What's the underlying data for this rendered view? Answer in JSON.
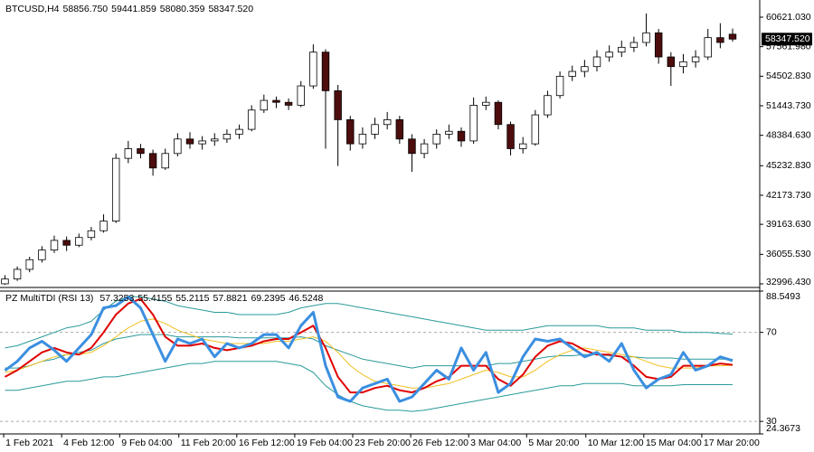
{
  "chart_data": [
    {
      "type": "candlestick",
      "title": "BTCUSD,H4",
      "quote": [
        {
          "value": 58856.75,
          "label": "58856.750"
        },
        {
          "value": 59441.859,
          "label": "59441.859"
        },
        {
          "value": 58080.359,
          "label": "58080.359"
        },
        {
          "value": 58347.52,
          "label": "58347.520"
        }
      ],
      "last_price": {
        "value": 58347.52,
        "label": "58347.520"
      },
      "up_color": "#ffffff",
      "down_color": "#4d0d0d",
      "wick_color": "#000000",
      "ylim": [
        32622,
        62400
      ],
      "yticks": [
        {
          "value": 60621.03,
          "label": "60621.030"
        },
        {
          "value": 57561.98,
          "label": "57561.980"
        },
        {
          "value": 54502.83,
          "label": "54502.830"
        },
        {
          "value": 51443.73,
          "label": "51443.730"
        },
        {
          "value": 48384.63,
          "label": "48384.630"
        },
        {
          "value": 45232.83,
          "label": "45232.830"
        },
        {
          "value": 42173.73,
          "label": "42173.730"
        },
        {
          "value": 39163.63,
          "label": "39163.630"
        },
        {
          "value": 36055.53,
          "label": "36055.530"
        },
        {
          "value": 32996.43,
          "label": "32996.430"
        }
      ],
      "ohlc": [
        [
          33000,
          33900,
          32900,
          33500
        ],
        [
          33500,
          34800,
          33300,
          34500
        ],
        [
          34500,
          35800,
          34200,
          35500
        ],
        [
          35500,
          36900,
          35200,
          36500
        ],
        [
          36500,
          38000,
          36200,
          37500
        ],
        [
          37500,
          37900,
          36400,
          37000
        ],
        [
          37000,
          38200,
          36800,
          37800
        ],
        [
          37800,
          38900,
          37500,
          38500
        ],
        [
          38500,
          40200,
          38300,
          39500
        ],
        [
          39500,
          46500,
          39300,
          46000
        ],
        [
          46000,
          47800,
          45500,
          47000
        ],
        [
          47000,
          47500,
          46000,
          46500
        ],
        [
          46500,
          46900,
          44200,
          45000
        ],
        [
          45000,
          47000,
          44800,
          46500
        ],
        [
          46500,
          48600,
          46200,
          48000
        ],
        [
          48000,
          48700,
          47000,
          47500
        ],
        [
          47500,
          48300,
          46900,
          47800
        ],
        [
          47800,
          48600,
          47300,
          48000
        ],
        [
          48000,
          49000,
          47600,
          48500
        ],
        [
          48500,
          49500,
          48000,
          49000
        ],
        [
          49000,
          51500,
          48800,
          51000
        ],
        [
          51000,
          52600,
          50700,
          52000
        ],
        [
          52000,
          52400,
          51200,
          51800
        ],
        [
          51800,
          52200,
          51000,
          51500
        ],
        [
          51500,
          54000,
          51300,
          53500
        ],
        [
          53500,
          57800,
          53200,
          57000
        ],
        [
          57000,
          57300,
          47000,
          53000
        ],
        [
          53000,
          53600,
          45200,
          50000
        ],
        [
          50000,
          50400,
          46800,
          47500
        ],
        [
          47500,
          49200,
          47000,
          48500
        ],
        [
          48500,
          50200,
          48000,
          49500
        ],
        [
          49500,
          50800,
          49000,
          50000
        ],
        [
          50000,
          50400,
          47500,
          48000
        ],
        [
          48000,
          48500,
          44600,
          46500
        ],
        [
          46500,
          48000,
          46000,
          47500
        ],
        [
          47500,
          49000,
          47000,
          48500
        ],
        [
          48500,
          49500,
          48000,
          48800
        ],
        [
          48800,
          49200,
          47200,
          47800
        ],
        [
          47800,
          52300,
          47500,
          51500
        ],
        [
          51500,
          52400,
          51000,
          51800
        ],
        [
          51800,
          52000,
          49000,
          49500
        ],
        [
          49500,
          49800,
          46300,
          47000
        ],
        [
          47000,
          48200,
          46500,
          47500
        ],
        [
          47500,
          51000,
          47300,
          50500
        ],
        [
          50500,
          53000,
          50200,
          52500
        ],
        [
          52500,
          55000,
          52200,
          54500
        ],
        [
          54500,
          55600,
          54000,
          55000
        ],
        [
          55000,
          56200,
          54400,
          55500
        ],
        [
          55500,
          57200,
          55000,
          56500
        ],
        [
          56500,
          57700,
          56000,
          57000
        ],
        [
          57000,
          58200,
          56500,
          57500
        ],
        [
          57500,
          58600,
          57000,
          58000
        ],
        [
          58000,
          61000,
          57600,
          59000
        ],
        [
          59000,
          59400,
          55800,
          56500
        ],
        [
          56500,
          57000,
          53500,
          55500
        ],
        [
          55500,
          56800,
          54800,
          56000
        ],
        [
          56000,
          57200,
          55400,
          56500
        ],
        [
          56500,
          59400,
          56200,
          58500
        ],
        [
          58500,
          60000,
          57400,
          58000
        ],
        [
          58856.75,
          59441.859,
          58080.359,
          58347.52
        ]
      ]
    },
    {
      "type": "line",
      "title": "PZ MultiTDI (RSI 13)",
      "current_values": [
        57.3253,
        55.4155,
        55.2115,
        57.8821,
        69.2395,
        46.5248
      ],
      "ylim": [
        24.3673,
        88.5493
      ],
      "yticks": [
        88.5493,
        70,
        30,
        24.3673
      ],
      "levels": [
        70,
        30
      ],
      "xlim": [
        -0.4,
        61.2
      ],
      "xticks": [
        {
          "value": -0.1,
          "label": "1 Feb 2021"
        },
        {
          "value": 4.6,
          "label": "4 Feb 12:00"
        },
        {
          "value": 9.3,
          "label": "9 Feb 04:00"
        },
        {
          "value": 14.1,
          "label": "11 Feb 20:00"
        },
        {
          "value": 18.8,
          "label": "16 Feb 12:00"
        },
        {
          "value": 23.5,
          "label": "19 Feb 04:00"
        },
        {
          "value": 28.2,
          "label": "23 Feb 20:00"
        },
        {
          "value": 32.9,
          "label": "26 Feb 12:00"
        },
        {
          "value": 37.6,
          "label": "3 Mar 04:00"
        },
        {
          "value": 42.3,
          "label": "5 Mar 20:00"
        },
        {
          "value": 47.1,
          "label": "10 Mar 12:00"
        },
        {
          "value": 51.8,
          "label": "15 Mar 04:00"
        },
        {
          "value": 56.5,
          "label": "17 Mar 20:00"
        }
      ],
      "series": [
        {
          "color": "#2a9a9a",
          "values": [
            63,
            64,
            66,
            68,
            70,
            72,
            73,
            75,
            80,
            84,
            86,
            86,
            85,
            84,
            82,
            81,
            80,
            79,
            79,
            78,
            78,
            78,
            78,
            79,
            81,
            82,
            83,
            83,
            82,
            81,
            80,
            79,
            78,
            77,
            76,
            75,
            74,
            73,
            72,
            71,
            71,
            71,
            71,
            72,
            73,
            73,
            73,
            73,
            73,
            72,
            72,
            72,
            71,
            71,
            71,
            70,
            70,
            70,
            69.5,
            69.2395
          ]
        },
        {
          "color": "#2a9a9a",
          "values": [
            54,
            54,
            55,
            57,
            58,
            60,
            61,
            62,
            65,
            67,
            68,
            69,
            69,
            69,
            68,
            68,
            68,
            68,
            68,
            67.5,
            67.5,
            67.5,
            67.5,
            67.5,
            68,
            67,
            64,
            62,
            60,
            58,
            57,
            56,
            55,
            54,
            55,
            55,
            55,
            55,
            55,
            55,
            56,
            56,
            57,
            58,
            59,
            59.5,
            59.5,
            60,
            60,
            59.5,
            59,
            59,
            58.5,
            58.5,
            58.5,
            58,
            58,
            58,
            58,
            57.8821
          ]
        },
        {
          "color": "#2a9a9a",
          "values": [
            44,
            44,
            45,
            46,
            47,
            48,
            48,
            49,
            50,
            50,
            51,
            52,
            53,
            54,
            55,
            56,
            56,
            57,
            57,
            57,
            57,
            57,
            57,
            56,
            55,
            52,
            46,
            42,
            39,
            37,
            36,
            35,
            35,
            34.5,
            35,
            36,
            37,
            38,
            39,
            40,
            41,
            42,
            43,
            44,
            45,
            46,
            46,
            47,
            47,
            47,
            47,
            46,
            46,
            46,
            46,
            46.5,
            46.5,
            46.5,
            46.5,
            46.5248
          ]
        },
        {
          "color": "#f0c020",
          "values": [
            52,
            53,
            55,
            57,
            59,
            60,
            60,
            61,
            64,
            68,
            72,
            75,
            76,
            74,
            71,
            69,
            67,
            66,
            65,
            65,
            65,
            65,
            66,
            66,
            67,
            68,
            66,
            61,
            55,
            51,
            48,
            47,
            46,
            45,
            45,
            46,
            47,
            49,
            51,
            53,
            52,
            50,
            50,
            53,
            57,
            60,
            62,
            63,
            62,
            61,
            60,
            59,
            57,
            55,
            54,
            54,
            54,
            55,
            55,
            55.2115
          ]
        },
        {
          "color": "#e00000",
          "values": [
            50,
            53,
            57,
            61,
            63,
            61,
            60,
            63,
            70,
            78,
            83,
            85,
            78,
            68,
            64,
            64,
            65,
            63,
            62,
            63,
            64,
            66,
            67,
            67,
            70,
            73,
            63,
            50,
            43,
            43,
            45,
            46,
            44,
            43,
            45,
            48,
            50,
            55,
            55,
            55,
            49,
            46,
            51,
            59,
            64,
            66,
            65,
            62,
            60,
            60,
            59,
            55,
            50,
            49,
            50,
            55,
            55,
            55,
            56,
            55.4155
          ]
        },
        {
          "color": "#3b8fe0",
          "values": [
            52.9,
            57,
            63,
            66,
            62,
            57,
            63,
            69,
            81,
            82,
            86,
            81,
            69,
            57,
            67,
            65,
            67,
            59,
            65,
            63,
            65,
            69,
            69,
            63,
            73,
            79,
            55,
            41,
            39,
            45,
            47,
            49,
            39,
            41,
            47,
            53,
            49,
            63,
            53,
            61,
            43,
            47,
            59,
            67,
            66,
            67,
            63,
            59,
            61,
            57,
            65,
            53,
            45,
            49,
            51,
            61,
            53,
            55,
            59,
            57.3253
          ]
        }
      ]
    }
  ]
}
